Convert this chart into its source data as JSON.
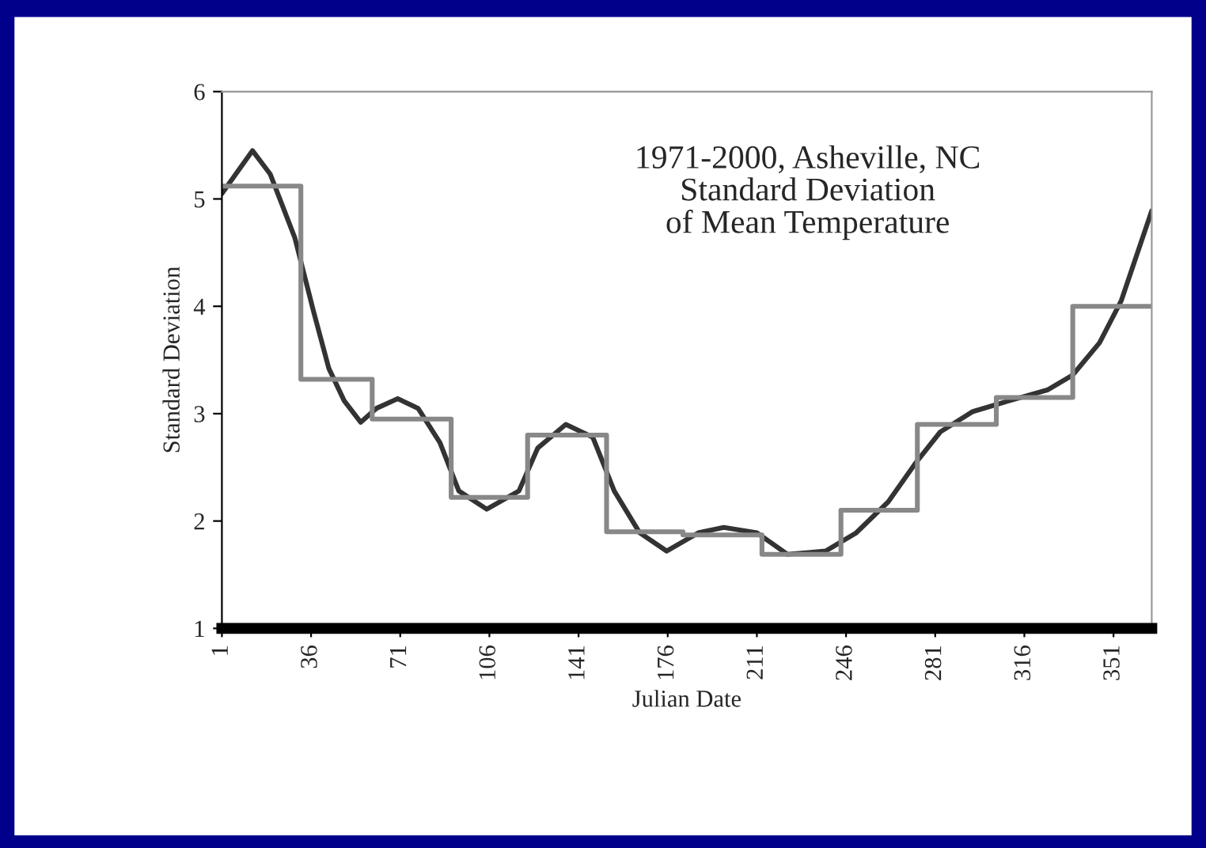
{
  "chart_data": {
    "type": "line",
    "xlabel": "Julian Date",
    "ylabel": "Standard Deviation",
    "annotations": [
      "1971-2000, Asheville, NC\nStandard Deviation\nof Mean Temperature"
    ],
    "xlim": [
      1,
      366
    ],
    "xticks": [
      1,
      36,
      71,
      106,
      141,
      176,
      211,
      246,
      281,
      316,
      351
    ],
    "ylim": [
      1,
      6
    ],
    "yticks": [
      1,
      2,
      3,
      4,
      5,
      6
    ],
    "grid": false,
    "legend": false,
    "series": [
      {
        "color": "#333333",
        "x": [
          1,
          13,
          20,
          29.6,
          37,
          43,
          49,
          55.5,
          61.7,
          70,
          78,
          86.6,
          94,
          105,
          117.6,
          125,
          136,
          146.6,
          155,
          165,
          175.6,
          188,
          198,
          211,
          223,
          238,
          250,
          262.6,
          273,
          283,
          295.8,
          310,
          325,
          335,
          345.5,
          354,
          366
        ],
        "values": [
          5.05,
          5.45,
          5.23,
          4.64,
          3.95,
          3.42,
          3.12,
          2.92,
          3.05,
          3.14,
          3.05,
          2.73,
          2.28,
          2.11,
          2.28,
          2.68,
          2.9,
          2.78,
          2.28,
          1.89,
          1.72,
          1.89,
          1.94,
          1.89,
          1.69,
          1.72,
          1.89,
          2.18,
          2.53,
          2.83,
          3.02,
          3.12,
          3.22,
          3.36,
          3.66,
          4.05,
          4.89
        ]
      },
      {
        "type": "step",
        "color": "#888888",
        "x": [
          1,
          32,
          60,
          91,
          121,
          152,
          182,
          213,
          244,
          274,
          305,
          335,
          366
        ],
        "values": [
          5.12,
          3.32,
          2.95,
          2.22,
          2.8,
          1.9,
          1.87,
          1.69,
          2.1,
          2.9,
          3.15,
          4.0,
          4.0
        ]
      }
    ]
  }
}
